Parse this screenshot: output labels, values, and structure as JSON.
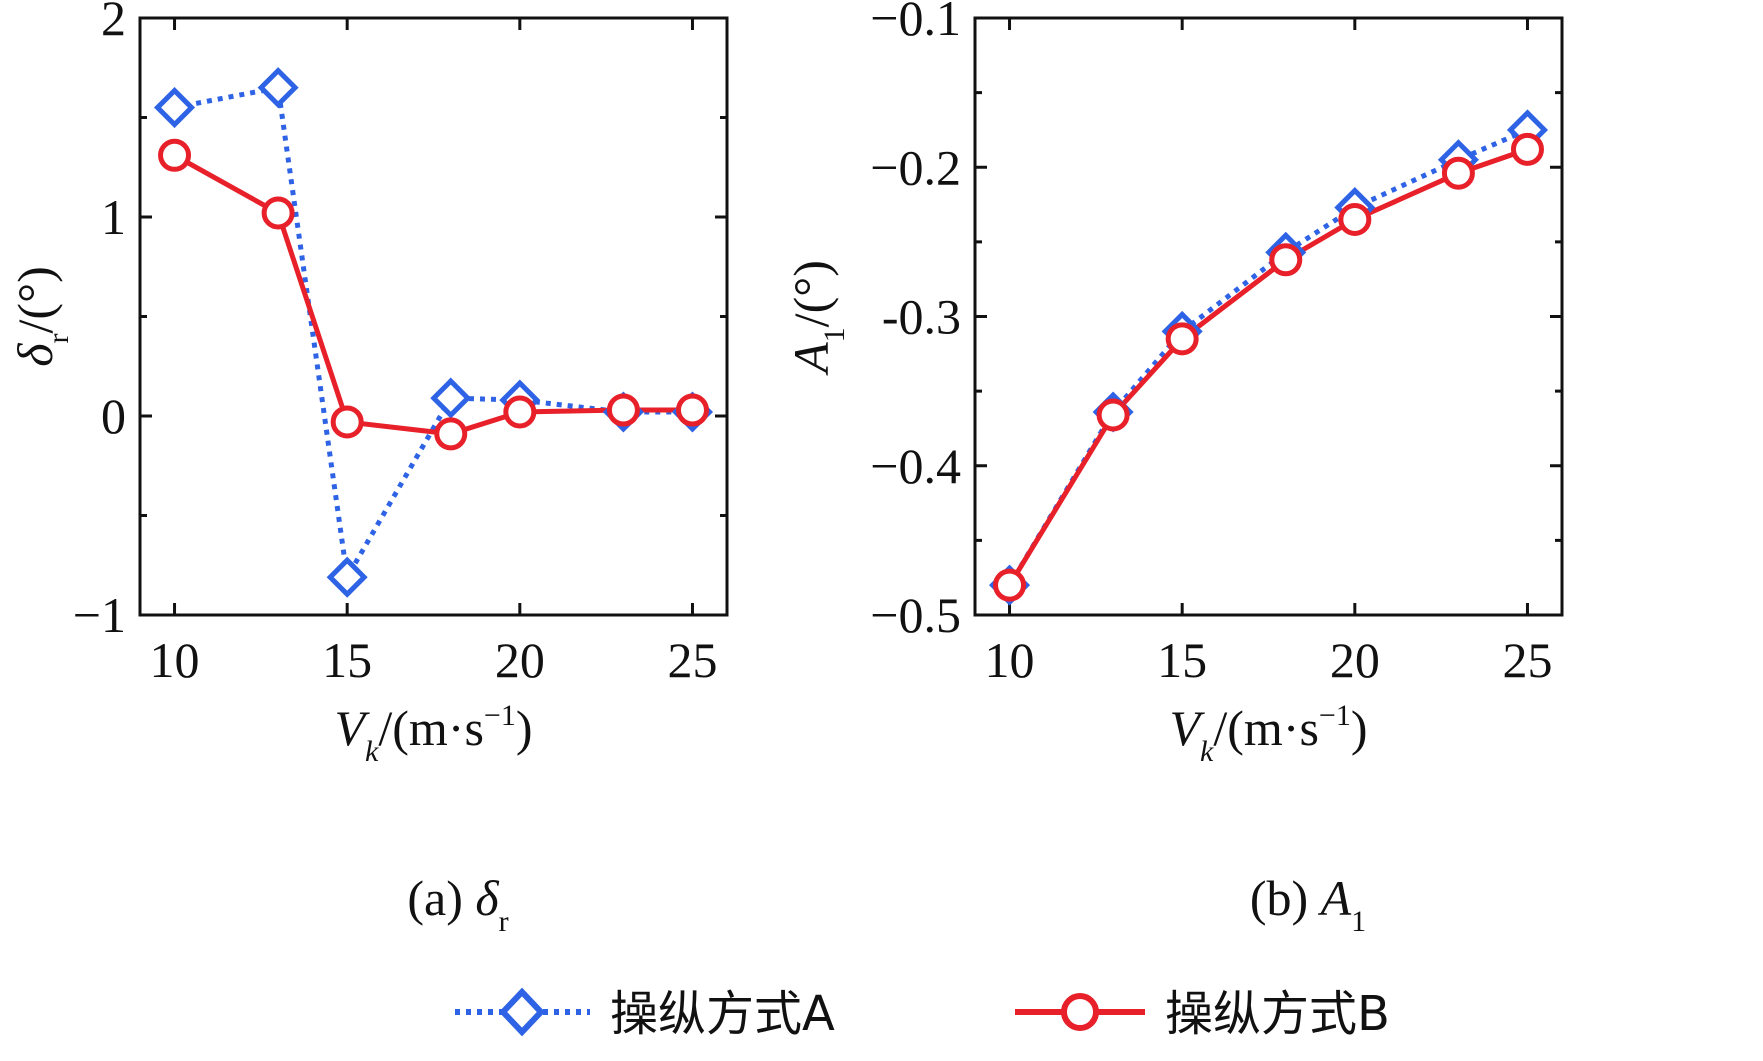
{
  "colors": {
    "series_a": "#2f63e6",
    "series_b": "#e8202a",
    "axis": "#111111"
  },
  "legend": [
    {
      "key": "A",
      "label": "操纵方式A",
      "marker": "diamond-icon"
    },
    {
      "key": "B",
      "label": "操纵方式B",
      "marker": "circle-icon"
    }
  ],
  "chart_data": [
    {
      "type": "line",
      "panel": "a",
      "caption": {
        "prefix": "(a) ",
        "symbol": "δ",
        "sub": "r"
      },
      "ylabel": {
        "symbol": "δ",
        "sub": "r",
        "unit": "/(°)"
      },
      "xlabel": {
        "symbol": "V",
        "sub": "k",
        "unit": "/(m·s",
        "sup": "−1",
        "close": ")"
      },
      "xlim": [
        9,
        26
      ],
      "ylim": [
        -1,
        2
      ],
      "xticks": [
        10,
        15,
        20,
        25
      ],
      "xtick_labels": [
        "10",
        "15",
        "20",
        "25"
      ],
      "yticks": [
        -1,
        0,
        1,
        2
      ],
      "ytick_labels": [
        "−1",
        "0",
        "1",
        "2"
      ],
      "x": [
        10,
        13,
        15,
        18,
        20,
        23,
        25
      ],
      "series": [
        {
          "name": "操纵方式A",
          "values": [
            1.55,
            1.65,
            -0.81,
            0.09,
            0.08,
            0.02,
            0.02
          ]
        },
        {
          "name": "操纵方式B",
          "values": [
            1.31,
            1.02,
            -0.03,
            -0.09,
            0.02,
            0.03,
            0.03
          ]
        }
      ]
    },
    {
      "type": "line",
      "panel": "b",
      "caption": {
        "prefix": "(b) ",
        "symbol": "A",
        "sub": "1"
      },
      "ylabel": {
        "symbol": "A",
        "sub": "1",
        "unit": "/(°)"
      },
      "xlabel": {
        "symbol": "V",
        "sub": "k",
        "unit": "/(m·s",
        "sup": "−1",
        "close": ")"
      },
      "xlim": [
        9,
        26
      ],
      "ylim": [
        -0.5,
        -0.1
      ],
      "xticks": [
        10,
        15,
        20,
        25
      ],
      "xtick_labels": [
        "10",
        "15",
        "20",
        "25"
      ],
      "yticks": [
        -0.5,
        -0.4,
        -0.3,
        -0.2,
        -0.1
      ],
      "ytick_labels": [
        "−0.5",
        "−0.4",
        "-0.3",
        "−0.2",
        "−0.1"
      ],
      "x": [
        10,
        13,
        15,
        18,
        20,
        23,
        25
      ],
      "series": [
        {
          "name": "操纵方式A",
          "values": [
            -0.48,
            -0.364,
            -0.31,
            -0.257,
            -0.227,
            -0.195,
            -0.175
          ]
        },
        {
          "name": "操纵方式B",
          "values": [
            -0.48,
            -0.366,
            -0.315,
            -0.262,
            -0.235,
            -0.204,
            -0.188
          ]
        }
      ]
    }
  ]
}
